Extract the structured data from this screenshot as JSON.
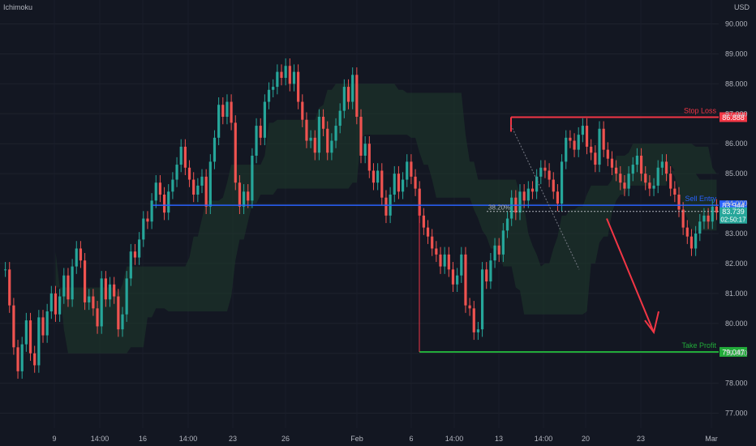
{
  "header": {
    "indicator": "Ichimoku",
    "currency": "USD"
  },
  "colors": {
    "background": "#131722",
    "bull": "#26a69a",
    "bear": "#ef5350",
    "cloud_bull": "#1f3a2c",
    "cloud_bear": "#3d1f24",
    "stop": "#f23645",
    "entry": "#2962ff",
    "profit": "#22ab3a"
  },
  "chart_data": {
    "type": "candlestick",
    "y_ticks": [
      "77.000",
      "78.000",
      "79.000",
      "80.000",
      "81.000",
      "82.000",
      "83.000",
      "84.000",
      "85.000",
      "86.000",
      "87.000",
      "88.000",
      "89.000",
      "90.000"
    ],
    "ylim": [
      76.5,
      90.8
    ],
    "x_ticks": [
      "9",
      "14:00",
      "16",
      "14:00",
      "23",
      "26",
      "Feb",
      "6",
      "14:00",
      "13",
      "14:00",
      "20",
      "23",
      "Mar"
    ],
    "annotations": {
      "stop_loss": {
        "label": "Stop Loss",
        "price": "86.888"
      },
      "sell_entry": {
        "label": "Sell Entry",
        "price": "83.944"
      },
      "current": {
        "price": "83.739",
        "timer": "02:50:17"
      },
      "take_profit": {
        "label": "Take Profit",
        "price": "79.047"
      },
      "fib": "38.20%"
    },
    "closes": [
      81.8,
      80.6,
      79.2,
      78.4,
      79.3,
      80.1,
      79.0,
      78.6,
      80.2,
      79.6,
      80.4,
      81.0,
      80.3,
      80.9,
      81.6,
      80.8,
      81.9,
      82.5,
      82.1,
      80.7,
      80.9,
      80.5,
      79.9,
      81.5,
      80.8,
      81.3,
      80.9,
      79.8,
      80.3,
      81.5,
      82.4,
      82.2,
      82.8,
      83.5,
      83.4,
      84.1,
      84.7,
      84.3,
      83.7,
      84.4,
      84.8,
      85.3,
      85.9,
      85.2,
      84.8,
      84.3,
      84.6,
      84.9,
      83.9,
      85.4,
      86.2,
      87.3,
      86.9,
      87.4,
      86.7,
      84.7,
      83.9,
      84.4,
      84.1,
      85.6,
      86.6,
      86.2,
      87.4,
      87.8,
      87.9,
      88.4,
      88.2,
      88.6,
      88.0,
      88.4,
      87.4,
      86.8,
      86.1,
      86.2,
      85.7,
      86.9,
      86.5,
      85.7,
      86.1,
      86.6,
      87.1,
      87.9,
      87.4,
      88.3,
      86.9,
      85.6,
      86.0,
      85.1,
      84.7,
      85.1,
      84.2,
      83.6,
      84.3,
      85.0,
      84.4,
      84.8,
      85.4,
      84.9,
      84.5,
      83.6,
      83.2,
      82.9,
      82.5,
      82.3,
      81.9,
      82.3,
      81.8,
      81.3,
      81.6,
      82.3,
      80.6,
      80.5,
      79.7,
      79.8,
      81.8,
      81.4,
      82.1,
      82.6,
      82.3,
      83.1,
      83.5,
      84.2,
      83.7,
      84.4,
      84.1,
      84.5,
      84.4,
      84.9,
      85.2,
      85.1,
      84.8,
      84.4,
      84.0,
      85.4,
      86.2,
      86.1,
      85.8,
      86.3,
      86.6,
      85.9,
      85.7,
      85.3,
      86.5,
      85.8,
      85.5,
      85.2,
      85.0,
      84.7,
      84.5,
      85.0,
      85.3,
      85.6,
      85.0,
      84.7,
      84.5,
      84.6,
      85.2,
      85.4,
      85.0,
      84.5,
      84.3,
      83.8,
      83.2,
      82.9,
      82.5,
      83.0,
      83.4,
      83.6,
      83.4,
      83.9,
      83.7
    ]
  }
}
